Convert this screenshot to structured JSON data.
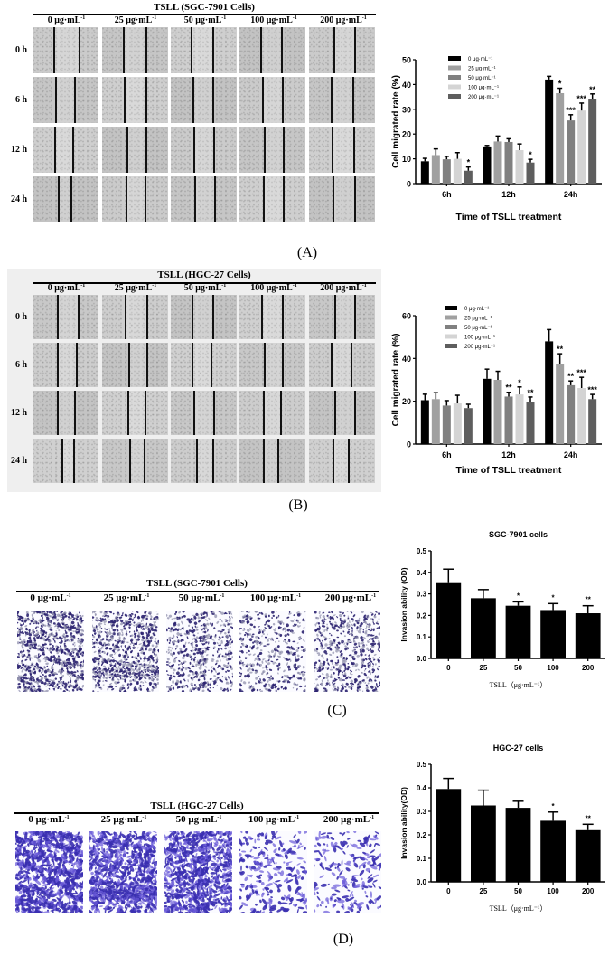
{
  "figure": {
    "panels": [
      {
        "id": "A",
        "caption": "(A)",
        "micrograph_title": "TSLL  (SGC-7901 Cells)",
        "concentrations": [
          "0 μg·mL",
          "25 μg·mL",
          "50 μg·mL",
          "100 μg·mL",
          "200 μg·mL"
        ],
        "conc_superscript": "-1",
        "time_rows": [
          "0 h",
          "6 h",
          "12 h",
          "24 h"
        ]
      },
      {
        "id": "B",
        "caption": "(B)",
        "micrograph_title": "TSLL  (HGC-27 Cells)",
        "concentrations": [
          "0 μg·mL",
          "25 μg·mL",
          "50 μg·mL",
          "100 μg·mL",
          "200 μg·mL"
        ],
        "conc_superscript": "-1",
        "time_rows": [
          "0 h",
          "6 h",
          "12 h",
          "24 h"
        ]
      },
      {
        "id": "C",
        "caption": "(C)",
        "micrograph_title": "TSLL  (SGC-7901 Cells)",
        "concentrations": [
          "0 μg·mL",
          "25 μg·mL",
          "50 μg·mL",
          "100 μg·mL",
          "200 μg·mL"
        ],
        "conc_superscript": "-1"
      },
      {
        "id": "D",
        "caption": "(D)",
        "micrograph_title": "TSLL  (HGC-27 Cells)",
        "concentrations": [
          "0 μg·mL",
          "25 μg·mL",
          "50 μg·mL",
          "100 μg·mL",
          "200 μg·mL"
        ],
        "conc_superscript": "-1"
      }
    ]
  },
  "chart_data": [
    {
      "panel": "A",
      "type": "bar",
      "title": "",
      "xlabel": "Time of TSLL treatment",
      "ylabel": "Cell migrated rate (%)",
      "categories": [
        "6h",
        "12h",
        "24h"
      ],
      "ylim": [
        0,
        50
      ],
      "yticks": [
        0,
        10,
        20,
        30,
        40,
        50
      ],
      "legend_position": "top-left inside",
      "grid": false,
      "series": [
        {
          "name": "0 μg·mL⁻¹",
          "color": "#000000",
          "values": [
            9,
            15,
            42
          ],
          "errors": [
            1.2,
            0.4,
            1.3
          ],
          "significance": [
            "",
            "",
            ""
          ]
        },
        {
          "name": "25 μg·mL⁻¹",
          "color": "#a0a0a0",
          "values": [
            11.5,
            17,
            36.5
          ],
          "errors": [
            2.5,
            2.2,
            2.0
          ],
          "significance": [
            "",
            "",
            "*"
          ]
        },
        {
          "name": "50 μg·mL⁻¹",
          "color": "#808080",
          "values": [
            9.8,
            16.8,
            25.5
          ],
          "errors": [
            1.2,
            1.3,
            2.3
          ],
          "significance": [
            "",
            "",
            "***"
          ]
        },
        {
          "name": "100 μg·mL⁻¹",
          "color": "#d4d4d4",
          "values": [
            10,
            13.5,
            29.5
          ],
          "errors": [
            2.5,
            2.5,
            3.0
          ],
          "significance": [
            "",
            "",
            "***"
          ]
        },
        {
          "name": "200 μg·mL⁻¹",
          "color": "#5e5e5e",
          "values": [
            5.2,
            8.5,
            34
          ],
          "errors": [
            1.5,
            1.3,
            2.2
          ],
          "significance": [
            "*",
            "*",
            "**"
          ]
        }
      ]
    },
    {
      "panel": "B",
      "type": "bar",
      "title": "",
      "xlabel": "Time of TSLL treatment",
      "ylabel": "Cell migrated rate (%)",
      "categories": [
        "6h",
        "12h",
        "24h"
      ],
      "ylim": [
        0,
        60
      ],
      "yticks": [
        0,
        20,
        40,
        60
      ],
      "legend_position": "top-left inside",
      "grid": false,
      "series": [
        {
          "name": "0 μg·mL⁻¹",
          "color": "#000000",
          "values": [
            20.5,
            30.5,
            48
          ],
          "errors": [
            2.8,
            4.5,
            5.5
          ],
          "significance": [
            "",
            "",
            ""
          ]
        },
        {
          "name": "25 μg·mL⁻¹",
          "color": "#a0a0a0",
          "values": [
            21,
            30,
            37.2
          ],
          "errors": [
            3.0,
            4.0,
            5.0
          ],
          "significance": [
            "",
            "",
            "**"
          ]
        },
        {
          "name": "50 μg·mL⁻¹",
          "color": "#808080",
          "values": [
            18,
            22.2,
            27.5
          ],
          "errors": [
            2.3,
            2.0,
            2.0
          ],
          "significance": [
            "",
            "**",
            "**"
          ]
        },
        {
          "name": "100 μg·mL⁻¹",
          "color": "#d4d4d4",
          "values": [
            19,
            23.2,
            26.2
          ],
          "errors": [
            3.8,
            3.5,
            5.0
          ],
          "significance": [
            "",
            "*",
            "***"
          ]
        },
        {
          "name": "200 μg·mL⁻¹",
          "color": "#5e5e5e",
          "values": [
            16.8,
            19.8,
            21
          ],
          "errors": [
            1.8,
            2.2,
            2.2
          ],
          "significance": [
            "",
            "**",
            "***"
          ]
        }
      ]
    },
    {
      "panel": "C",
      "type": "bar",
      "title": "SGC-7901 cells",
      "xlabel": "TSLL（μg·mL⁻¹）",
      "ylabel": "Invasion ability (OD)",
      "categories": [
        "0",
        "25",
        "50",
        "100",
        "200"
      ],
      "ylim": [
        0,
        0.5
      ],
      "yticks": [
        "0.0",
        "0.1",
        "0.2",
        "0.3",
        "0.4",
        "0.5"
      ],
      "grid": false,
      "color": "#000000",
      "values": [
        0.35,
        0.28,
        0.245,
        0.225,
        0.21
      ],
      "errors": [
        0.065,
        0.04,
        0.018,
        0.03,
        0.035
      ],
      "significance": [
        "",
        "",
        "*",
        "*",
        "**"
      ]
    },
    {
      "panel": "D",
      "type": "bar",
      "title": "HGC-27 cells",
      "xlabel": "TSLL（μg·mL⁻¹）",
      "ylabel": "Invasion ability(OD)",
      "categories": [
        "0",
        "25",
        "50",
        "100",
        "200"
      ],
      "ylim": [
        0,
        0.5
      ],
      "yticks": [
        "0.0",
        "0.1",
        "0.2",
        "0.3",
        "0.4",
        "0.5"
      ],
      "grid": false,
      "color": "#000000",
      "values": [
        0.395,
        0.325,
        0.315,
        0.26,
        0.22
      ],
      "errors": [
        0.045,
        0.065,
        0.028,
        0.037,
        0.025
      ],
      "significance": [
        "",
        "",
        "",
        "*",
        "**"
      ]
    }
  ]
}
